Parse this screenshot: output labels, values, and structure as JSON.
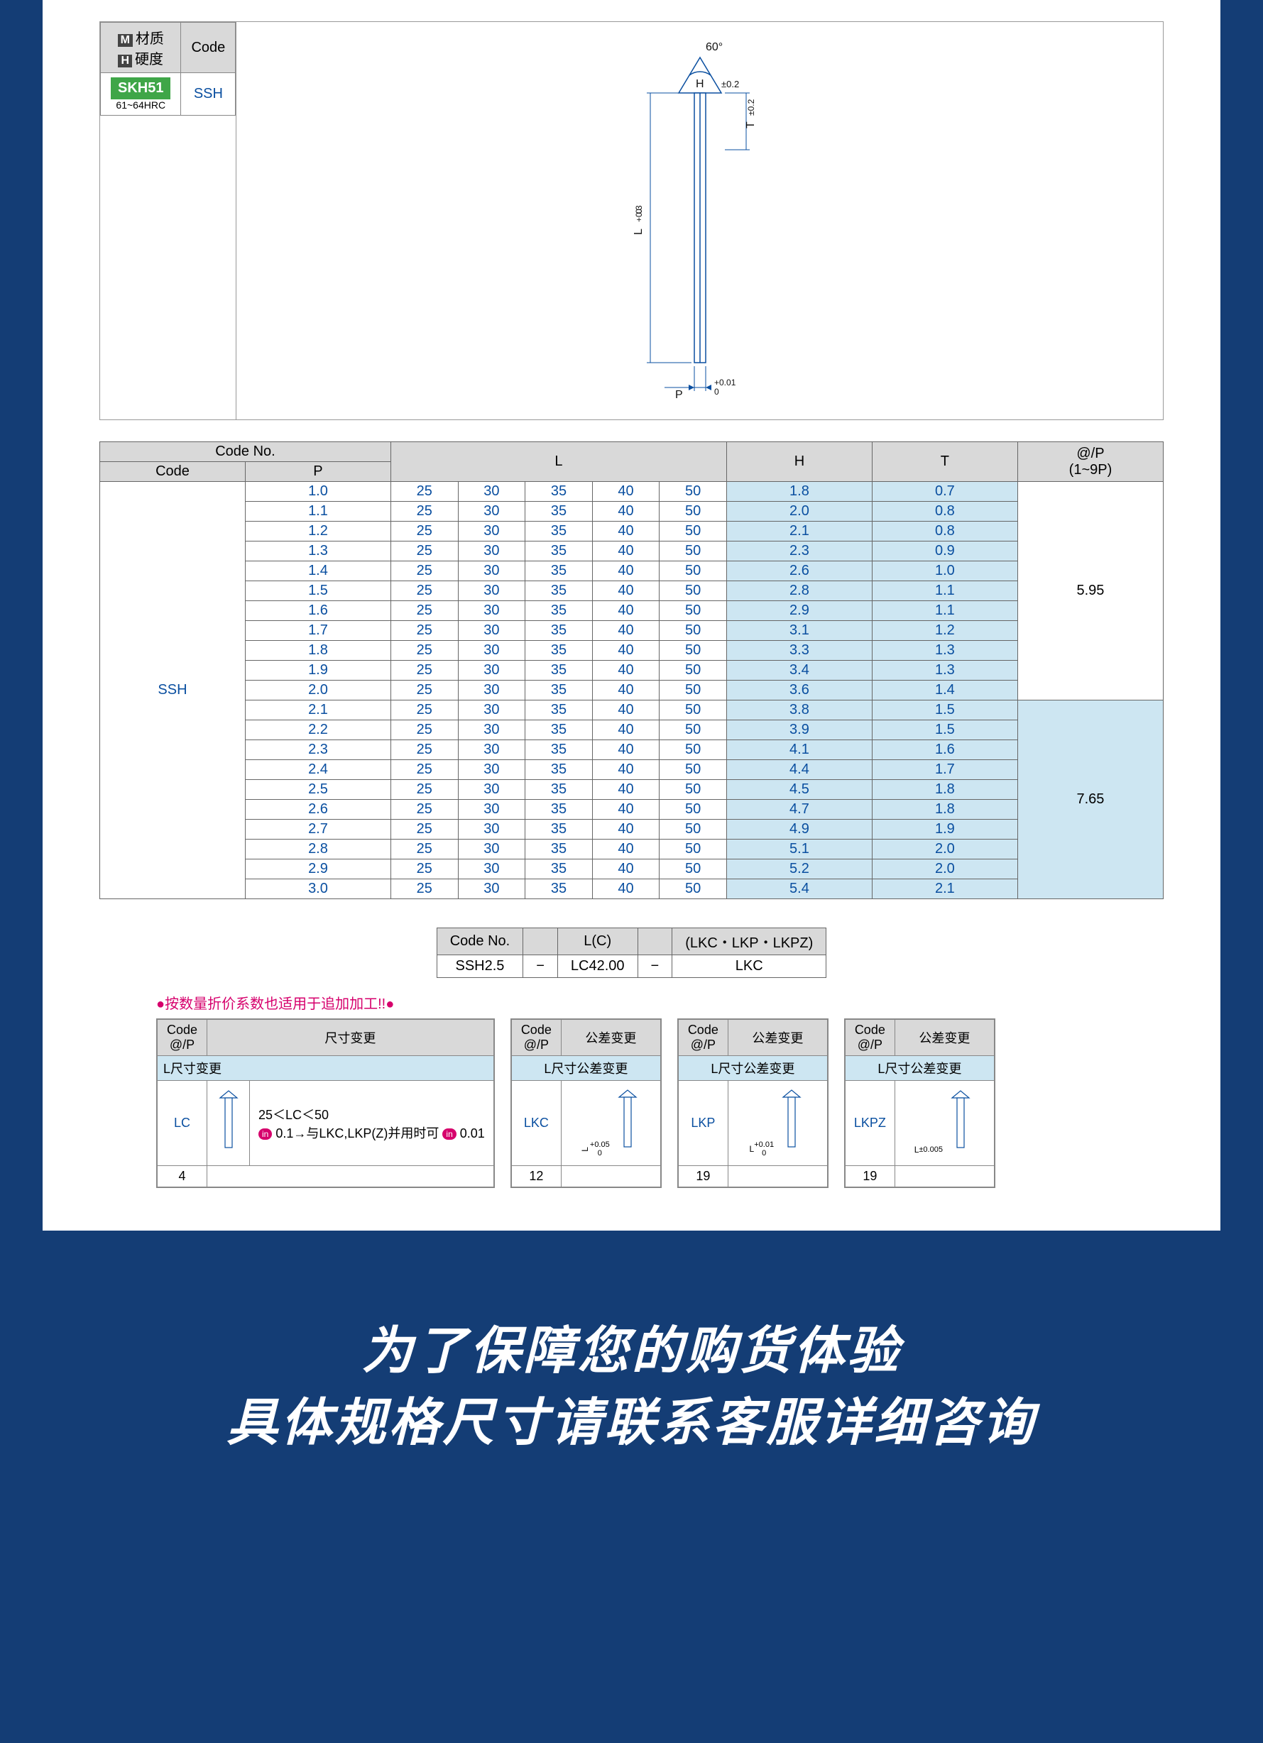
{
  "material": {
    "header_m": "M",
    "header_m_label": "材质",
    "header_h": "H",
    "header_h_label": "硬度",
    "code_header": "Code",
    "grade": "SKH51",
    "hrc": "61~64HRC",
    "code": "SSH"
  },
  "diagram": {
    "angle": "60°",
    "h_label": "H",
    "h_tol": "±0.2",
    "t_label": "T",
    "t_tol": "±0.2",
    "l_label": "L",
    "l_tol_upper": "+0.3",
    "l_tol_lower": "0",
    "p_label": "P",
    "p_tol_upper": "+0.01",
    "p_tol_lower": "0",
    "colors": {
      "line": "#0a4fa0",
      "fill": "#ffffff",
      "text": "#111"
    }
  },
  "spec": {
    "headers": {
      "code_no": "Code No.",
      "code": "Code",
      "p": "P",
      "l": "L",
      "h": "H",
      "t": "T",
      "price": "@/P",
      "price_sub": "(1~9P)"
    },
    "code": "SSH",
    "l_values": [
      "25",
      "30",
      "35",
      "40",
      "50"
    ],
    "rows_top": [
      {
        "p": "1.0",
        "h": "1.8",
        "t": "0.7"
      },
      {
        "p": "1.1",
        "h": "2.0",
        "t": "0.8"
      },
      {
        "p": "1.2",
        "h": "2.1",
        "t": "0.8"
      },
      {
        "p": "1.3",
        "h": "2.3",
        "t": "0.9"
      },
      {
        "p": "1.4",
        "h": "2.6",
        "t": "1.0"
      },
      {
        "p": "1.5",
        "h": "2.8",
        "t": "1.1"
      },
      {
        "p": "1.6",
        "h": "2.9",
        "t": "1.1"
      },
      {
        "p": "1.7",
        "h": "3.1",
        "t": "1.2"
      },
      {
        "p": "1.8",
        "h": "3.3",
        "t": "1.3"
      },
      {
        "p": "1.9",
        "h": "3.4",
        "t": "1.3"
      },
      {
        "p": "2.0",
        "h": "3.6",
        "t": "1.4"
      }
    ],
    "rows_bottom": [
      {
        "p": "2.1",
        "h": "3.8",
        "t": "1.5"
      },
      {
        "p": "2.2",
        "h": "3.9",
        "t": "1.5"
      },
      {
        "p": "2.3",
        "h": "4.1",
        "t": "1.6"
      },
      {
        "p": "2.4",
        "h": "4.4",
        "t": "1.7"
      },
      {
        "p": "2.5",
        "h": "4.5",
        "t": "1.8"
      },
      {
        "p": "2.6",
        "h": "4.7",
        "t": "1.8"
      },
      {
        "p": "2.7",
        "h": "4.9",
        "t": "1.9"
      },
      {
        "p": "2.8",
        "h": "5.1",
        "t": "2.0"
      },
      {
        "p": "2.9",
        "h": "5.2",
        "t": "2.0"
      },
      {
        "p": "3.0",
        "h": "5.4",
        "t": "2.1"
      }
    ],
    "price_top": "5.95",
    "price_bottom": "7.65"
  },
  "order": {
    "h_code": "Code No.",
    "h_lc": "L(C)",
    "h_lk": "(LKC・LKP・LKPZ)",
    "v_code": "SSH2.5",
    "dash1": "−",
    "v_lc": "LC42.00",
    "dash2": "−",
    "v_lk": "LKC"
  },
  "note": "按数量折价系数也适用于追加加工!!",
  "options": {
    "lc": {
      "header1": "Code\n@/P",
      "header2": "尺寸变更",
      "sub": "L尺寸变更",
      "code": "LC",
      "desc1": "25＜LC＜50",
      "desc2a": "0.1→与LKC,LKP(Z)并用时可",
      "desc2b": "0.01",
      "price": "4"
    },
    "lkc": {
      "header1": "Code\n@/P",
      "header2": "公差变更",
      "sub": "L尺寸公差变更",
      "code": "LKC",
      "tol": "+0.05\n0",
      "price": "12"
    },
    "lkp": {
      "header1": "Code\n@/P",
      "header2": "公差变更",
      "sub": "L尺寸公差变更",
      "code": "LKP",
      "tol": "+0.01\n0",
      "price": "19"
    },
    "lkpz": {
      "header1": "Code\n@/P",
      "header2": "公差变更",
      "sub": "L尺寸公差变更",
      "code": "LKPZ",
      "tol": "±0.005",
      "price": "19"
    }
  },
  "footer": {
    "line1": "为了保障您的购货体验",
    "line2": "具体规格尺寸请联系客服详细咨询"
  }
}
